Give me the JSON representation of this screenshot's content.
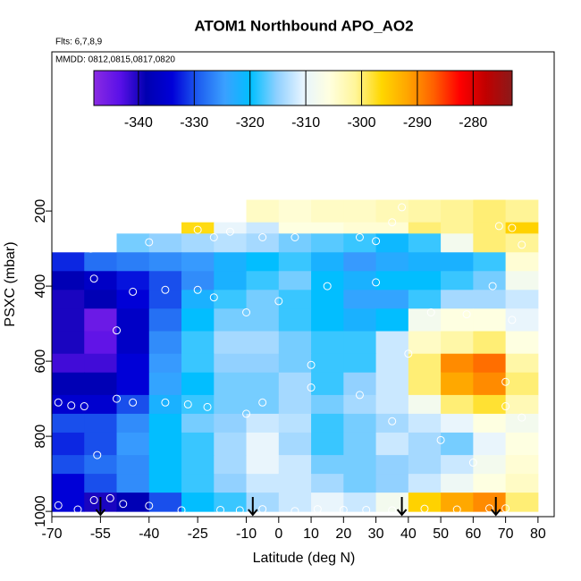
{
  "chart_data": {
    "type": "heatmap",
    "title": "ATOM1 Northbound APO_AO2",
    "subtitle": "Flts: 6,7,8,9",
    "annotation": "MMDD: 0812,0815,0817,0820",
    "x_label": "Latitude (deg N)",
    "y_label": "PSXC (mbar)",
    "xlim": [
      -70,
      85
    ],
    "ylim": [
      1014,
      -224
    ],
    "xticks": [
      -70,
      -55,
      -40,
      -25,
      -10,
      0,
      10,
      20,
      30,
      40,
      50,
      60,
      70,
      80
    ],
    "yticks": [
      200,
      400,
      600,
      800,
      1000
    ],
    "lat_edges": [
      -70,
      -60,
      -50,
      -40,
      -30,
      -20,
      -10,
      0,
      10,
      20,
      30,
      40,
      50,
      60,
      70,
      80
    ],
    "pressure_edges": [
      170,
      230,
      260,
      310,
      360,
      410,
      460,
      520,
      580,
      630,
      690,
      740,
      790,
      850,
      900,
      950,
      1000
    ],
    "values": [
      [
        null,
        null,
        null,
        null,
        null,
        null,
        -304,
        -305,
        -304,
        -304,
        -303,
        -302,
        -301,
        -300,
        -301
      ],
      [
        null,
        null,
        null,
        null,
        -297,
        -310,
        -312,
        -306,
        -306,
        -305,
        -305,
        -300,
        -301,
        -300,
        -296
      ],
      [
        null,
        null,
        -316,
        -315,
        -314,
        -313,
        -314,
        -316,
        -317,
        -318,
        -321,
        -318,
        -308,
        -300,
        -301
      ],
      [
        -332,
        -328,
        -327,
        -326,
        -325,
        -322,
        -320,
        -318,
        -322,
        -325,
        -323,
        -322,
        -322,
        -318,
        -305
      ],
      [
        -338,
        -336,
        -333,
        -330,
        -326,
        -322,
        -318,
        -316,
        -320,
        -322,
        -320,
        -320,
        -318,
        -316,
        -308
      ],
      [
        -340,
        -338,
        -334,
        -330,
        -322,
        -318,
        -316,
        -318,
        -320,
        -324,
        -324,
        -318,
        -314,
        -314,
        -312
      ],
      [
        -340,
        -345,
        -336,
        -328,
        -320,
        -316,
        -316,
        -318,
        -320,
        -322,
        -320,
        -308,
        -306,
        -306,
        -310
      ],
      [
        -340,
        -344,
        -336,
        -326,
        -318,
        -314,
        -314,
        -316,
        -318,
        -318,
        -312,
        -304,
        -302,
        -300,
        -306
      ],
      [
        -342,
        -342,
        -334,
        -325,
        -318,
        -315,
        -315,
        -316,
        -318,
        -318,
        -312,
        -300,
        -290,
        -288,
        -302
      ],
      [
        -338,
        -338,
        -334,
        -324,
        -320,
        -316,
        -316,
        -314,
        -318,
        -315,
        -312,
        -300,
        -292,
        -290,
        -300
      ],
      [
        -335,
        -335,
        -330,
        -322,
        -318,
        -316,
        -316,
        -314,
        -316,
        -314,
        -312,
        -308,
        -300,
        -298,
        -303
      ],
      [
        -330,
        -330,
        -326,
        -320,
        -316,
        -315,
        -312,
        -313,
        -318,
        -316,
        -314,
        -312,
        -310,
        -306,
        -308
      ],
      [
        -332,
        -330,
        -325,
        -320,
        -318,
        -314,
        -310,
        -314,
        -318,
        -316,
        -312,
        -314,
        -316,
        -310,
        -306
      ],
      [
        -330,
        -328,
        -326,
        -320,
        -318,
        -314,
        -310,
        -312,
        -316,
        -316,
        -315,
        -314,
        -312,
        -308,
        -305
      ],
      [
        -334,
        -330,
        -326,
        -320,
        -318,
        -315,
        -312,
        -312,
        -314,
        -316,
        -315,
        -312,
        -309,
        -306,
        -304
      ],
      [
        -334,
        -340,
        -338,
        -330,
        -320,
        -318,
        -314,
        -312,
        -310,
        -312,
        -308,
        -296,
        -292,
        -290,
        -300
      ]
    ],
    "clim": [
      -348,
      -273
    ],
    "cticks": [
      -340,
      -330,
      -320,
      -310,
      -300,
      -290,
      -280
    ],
    "colors": [
      "#8a2be2",
      "#5a10e8",
      "#0000b0",
      "#0000d8",
      "#1e5ef0",
      "#3aa0ff",
      "#00bfff",
      "#8fd0ff",
      "#e6f4ff",
      "#ffffe0",
      "#fff59a",
      "#ffd700",
      "#ffa500",
      "#ff6000",
      "#ff0000",
      "#c00000",
      "#8b1a1a"
    ],
    "points": {
      "lat": [
        -68,
        -62,
        -57,
        -52,
        -48,
        -40,
        -30,
        -18,
        -12,
        -5,
        5,
        12,
        20,
        27,
        35,
        45,
        55,
        65,
        70,
        -56,
        -60,
        -64,
        -68,
        -50,
        -45,
        -35,
        -28,
        -22,
        -10,
        -5,
        10,
        25,
        35,
        -57,
        -45,
        -35,
        -25,
        -20,
        -10,
        0,
        15,
        30,
        -50,
        -58,
        -40,
        -20,
        -15,
        -5,
        5,
        25,
        30,
        35,
        38,
        68,
        72,
        75,
        66,
        72,
        58,
        70,
        70,
        75,
        50,
        60,
        10,
        40,
        47,
        -25
      ],
      "pressure": [
        984,
        995,
        970,
        965,
        980,
        985,
        997,
        996,
        997,
        994,
        999,
        994,
        996,
        996,
        997,
        993,
        995,
        992,
        992,
        850,
        720,
        718,
        710,
        700,
        710,
        710,
        715,
        722,
        740,
        710,
        670,
        690,
        760,
        380,
        415,
        410,
        410,
        430,
        470,
        440,
        400,
        390,
        518,
        300,
        283,
        270,
        255,
        270,
        270,
        270,
        280,
        230,
        190,
        240,
        245,
        290,
        400,
        490,
        475,
        655,
        720,
        750,
        810,
        870,
        610,
        580,
        470,
        250
      ]
    },
    "arrows": [
      -55,
      -8,
      38,
      67
    ]
  }
}
